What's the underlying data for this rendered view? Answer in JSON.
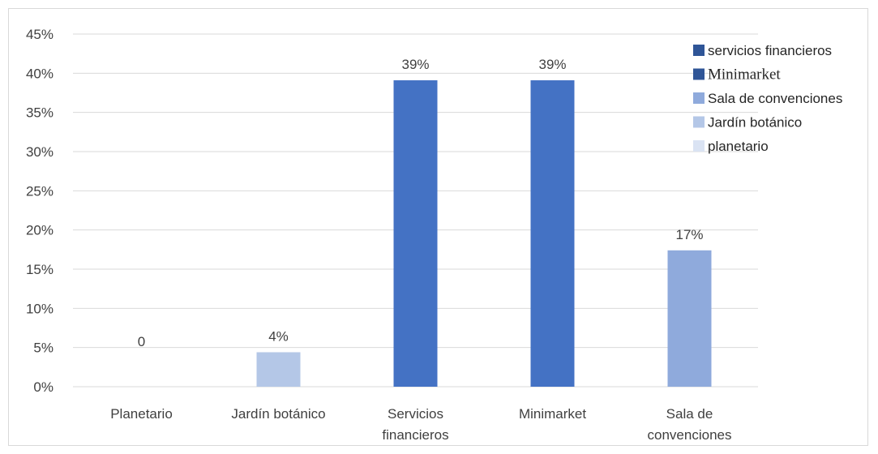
{
  "chart_data": {
    "type": "bar",
    "categories": [
      [
        "Planetario"
      ],
      [
        "Jardín botánico"
      ],
      [
        "Servicios",
        "financieros"
      ],
      [
        "Minimarket"
      ],
      [
        "Sala de",
        "convenciones"
      ]
    ],
    "values": [
      0,
      4.4,
      39.1,
      39.1,
      17.4
    ],
    "data_labels": [
      "0",
      "4%",
      "39%",
      "39%",
      "17%"
    ],
    "bar_colors": [
      "#dae3f3",
      "#b4c7e7",
      "#4472c4",
      "#4472c4",
      "#8faadc"
    ],
    "ylim": [
      0,
      45
    ],
    "ytick_step": 5,
    "ytick_labels": [
      "0%",
      "5%",
      "10%",
      "15%",
      "20%",
      "25%",
      "30%",
      "35%",
      "40%",
      "45%"
    ],
    "grid": true,
    "title": "",
    "xlabel": "",
    "ylabel": "",
    "legend": {
      "placement": "top-right",
      "entries": [
        {
          "label": "servicios financieros",
          "color": "#2f5597",
          "font": "sans"
        },
        {
          "label": "Minimarket",
          "color": "#2f5597",
          "font": "serif"
        },
        {
          "label": "Sala de convenciones",
          "color": "#8faadc",
          "font": "sans"
        },
        {
          "label": "Jardín botánico",
          "color": "#b4c7e7",
          "font": "sans"
        },
        {
          "label": "planetario",
          "color": "#dae3f3",
          "font": "sans"
        }
      ]
    }
  }
}
